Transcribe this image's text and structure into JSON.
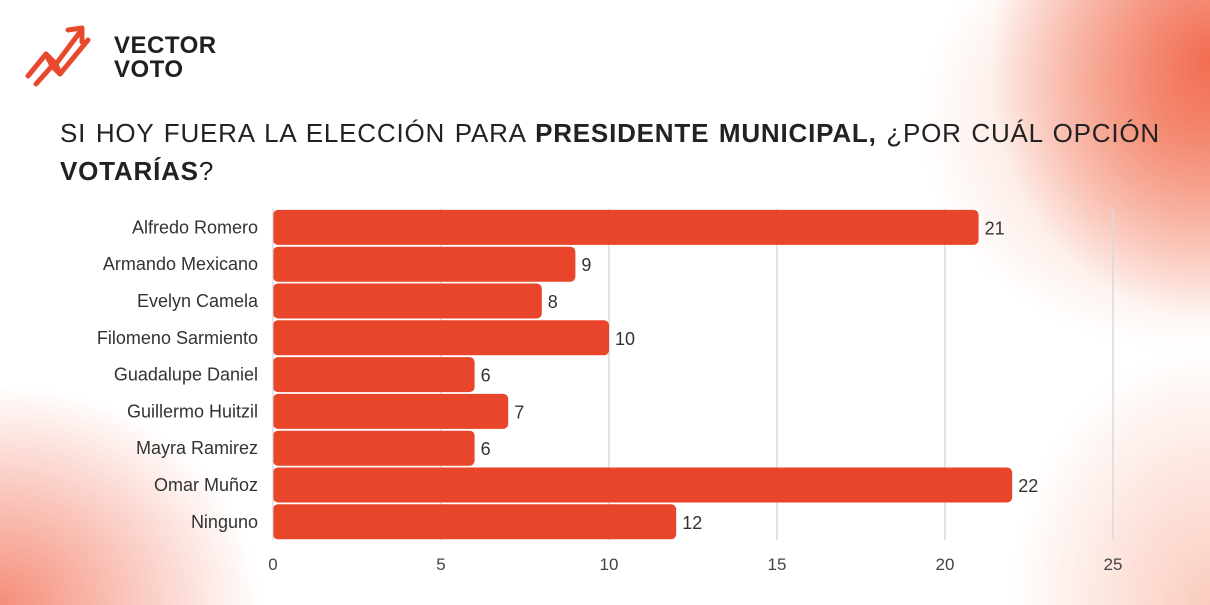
{
  "brand": {
    "line1": "VECTOR",
    "line2": "VOTO",
    "logo_icon": "arrow-up-trend-icon",
    "accent_color": "#e8492c"
  },
  "question": {
    "part1": "SI HOY FUERA LA ELECCIÓN PARA ",
    "bold1": "PRESIDENTE MUNICIPAL,",
    "part2": " ¿POR CUÁL OPCIÓN ",
    "bold2": "VOTARÍAS",
    "part3": "?"
  },
  "chart_data": {
    "type": "bar",
    "orientation": "horizontal",
    "categories": [
      "Alfredo Romero",
      "Armando Mexicano",
      "Evelyn Camela",
      "Filomeno Sarmiento",
      "Guadalupe Daniel",
      "Guillermo Huitzil",
      "Mayra Ramirez",
      "Omar Muñoz",
      "Ninguno"
    ],
    "values": [
      21,
      9,
      8,
      10,
      6,
      7,
      6,
      22,
      12
    ],
    "xlim": [
      0,
      25
    ],
    "xticks": [
      0,
      5,
      10,
      15,
      20,
      25
    ],
    "grid": true,
    "bar_color": "#e8452a",
    "title": "",
    "xlabel": "",
    "ylabel": ""
  }
}
